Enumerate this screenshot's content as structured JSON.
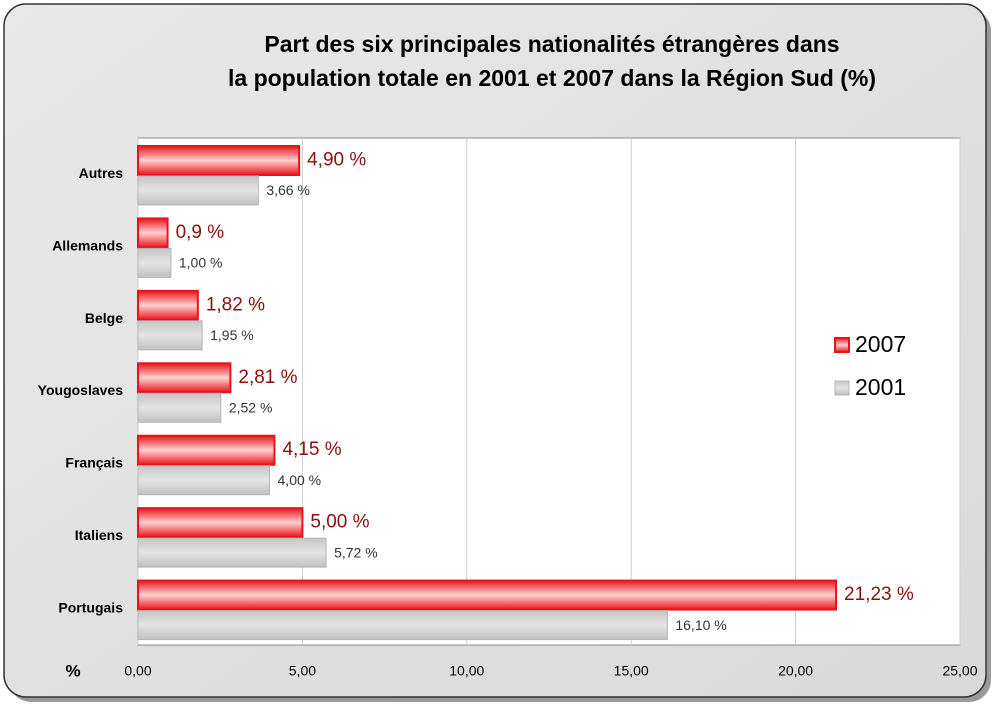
{
  "chart_data": {
    "type": "bar",
    "orientation": "horizontal",
    "title": [
      "Part des six principales nationalités étrangères dans",
      "la population totale en 2001 et 2007 dans la Région Sud (%)"
    ],
    "xlabel": "%",
    "categories": [
      "Autres",
      "Allemands",
      "Belge",
      "Yougoslaves",
      "Français",
      "Italiens",
      "Portugais"
    ],
    "series": [
      {
        "name": "2007",
        "color": "#e8141c",
        "values": [
          4.9,
          0.9,
          1.82,
          2.81,
          4.15,
          5.0,
          21.23
        ],
        "value_labels": [
          "4,90 %",
          "0,9 %",
          "1,82 %",
          "2,81 %",
          "4,15 %",
          "5,00 %",
          "21,23 %"
        ]
      },
      {
        "name": "2001",
        "color": "#c6c6c6",
        "values": [
          3.66,
          1.0,
          1.95,
          2.52,
          4.0,
          5.72,
          16.1
        ],
        "value_labels": [
          "3,66 %",
          "1,00 %",
          "1,95 %",
          "2,52 %",
          "4,00 %",
          "5,72 %",
          "16,10 %"
        ]
      }
    ],
    "xlim": [
      0,
      25
    ],
    "xticks": [
      {
        "value": 0,
        "label": "0,00"
      },
      {
        "value": 5,
        "label": "5,00"
      },
      {
        "value": 10,
        "label": "10,00"
      },
      {
        "value": 15,
        "label": "15,00"
      },
      {
        "value": 20,
        "label": "20,00"
      },
      {
        "value": 25,
        "label": "25,00"
      }
    ],
    "grid": true,
    "legend": "right"
  }
}
